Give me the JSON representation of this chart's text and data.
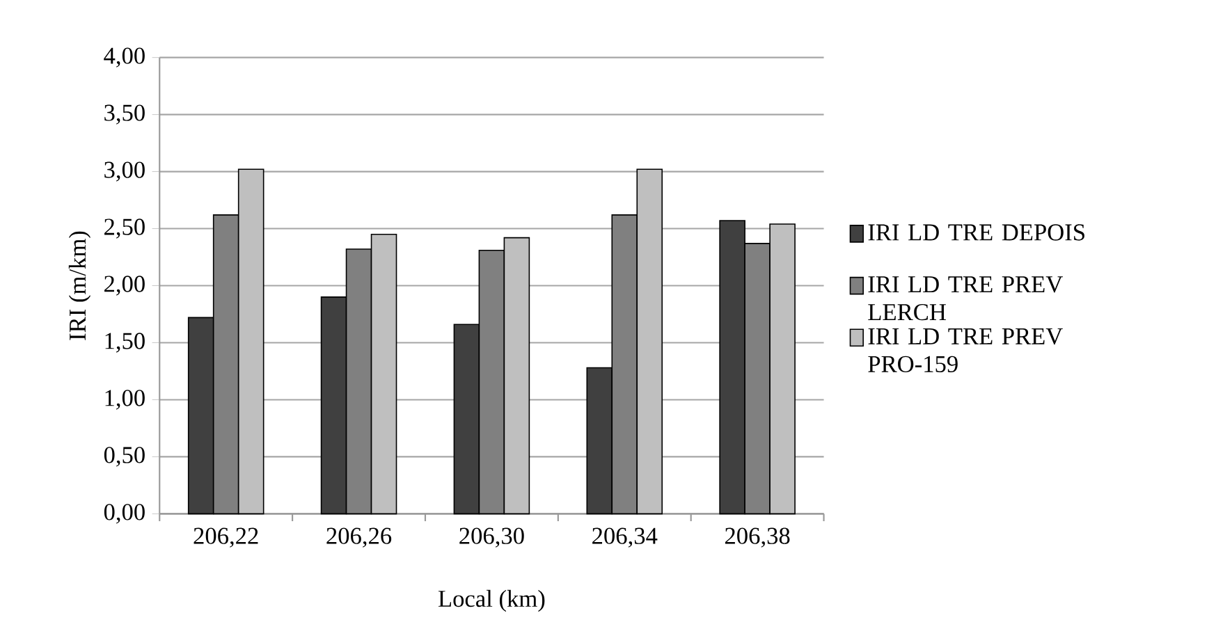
{
  "chart_data": {
    "type": "bar",
    "xlabel": "Local (km)",
    "ylabel": "IRI (m/km)",
    "categories": [
      "206,22",
      "206,26",
      "206,30",
      "206,34",
      "206,38"
    ],
    "series": [
      {
        "name": "IRI LD TRE DEPOIS",
        "color": "#404040",
        "values": [
          1.72,
          1.9,
          1.66,
          1.28,
          2.57
        ]
      },
      {
        "name": "IRI LD TRE PREV LERCH",
        "color": "#808080",
        "values": [
          2.62,
          2.32,
          2.31,
          2.62,
          2.37
        ]
      },
      {
        "name": "IRI LD TRE PREV PRO-159",
        "color": "#bfbfbf",
        "values": [
          3.02,
          2.45,
          2.42,
          3.02,
          2.54
        ]
      }
    ],
    "ylim": [
      0,
      4
    ],
    "yticks": [
      {
        "value": 0,
        "label": "0,00"
      },
      {
        "value": 0.5,
        "label": "0,50"
      },
      {
        "value": 1,
        "label": "1,00"
      },
      {
        "value": 1.5,
        "label": "1,50"
      },
      {
        "value": 2,
        "label": "2,00"
      },
      {
        "value": 2.5,
        "label": "2,50"
      },
      {
        "value": 3,
        "label": "3,00"
      },
      {
        "value": 3.5,
        "label": "3,50"
      },
      {
        "value": 4,
        "label": "4,00"
      }
    ],
    "grid": "y",
    "legend": "right"
  }
}
